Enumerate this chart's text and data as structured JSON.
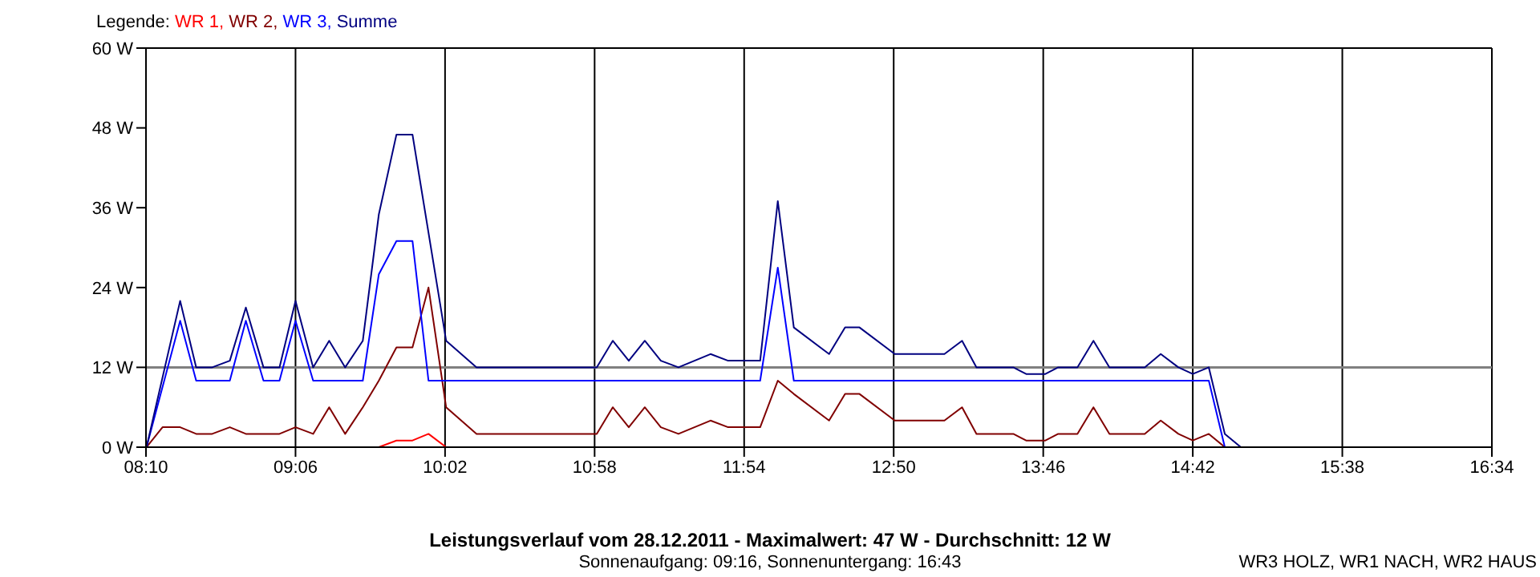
{
  "chart_data": {
    "type": "line",
    "title": "Leistungsverlauf vom 28.12.2011 - Maximalwert: 47 W - Durchschnitt: 12 W",
    "subtitle": "Sonnenaufgang: 09:16, Sonnenuntergang: 16:43",
    "annotations": [
      "WR3 HOLZ, WR1 NACH, WR2 HAUS"
    ],
    "legend_title": "Legende:",
    "legend": "top left",
    "grid": true,
    "xlim": [
      8.1667,
      16.5667
    ],
    "xticks": [
      {
        "value": 8.1667,
        "label": "08:10"
      },
      {
        "value": 9.1,
        "label": "09:06"
      },
      {
        "value": 10.0333,
        "label": "10:02"
      },
      {
        "value": 10.9667,
        "label": "10:58"
      },
      {
        "value": 11.9,
        "label": "11:54"
      },
      {
        "value": 12.8333,
        "label": "12:50"
      },
      {
        "value": 13.7667,
        "label": "13:46"
      },
      {
        "value": 14.7,
        "label": "14:42"
      },
      {
        "value": 15.6333,
        "label": "15:38"
      },
      {
        "value": 16.5667,
        "label": "16:34"
      }
    ],
    "ylim": [
      0,
      60
    ],
    "yticks": [
      {
        "value": 0,
        "label": "0 W"
      },
      {
        "value": 12,
        "label": "12 W"
      },
      {
        "value": 24,
        "label": "24 W"
      },
      {
        "value": 36,
        "label": "36 W"
      },
      {
        "value": 48,
        "label": "48 W"
      },
      {
        "value": 60,
        "label": "60 W"
      }
    ],
    "ref_lines": [
      {
        "axis": "y",
        "value": 12,
        "color": "#808080"
      }
    ],
    "series": [
      {
        "name": "WR 1,",
        "color": "#ff0000",
        "x": [
          9.62,
          9.73,
          9.83,
          9.93,
          10.04
        ],
        "values": [
          0,
          1,
          1,
          2,
          0
        ]
      },
      {
        "name": "WR 2,",
        "color": "#800000",
        "x": [
          8.17,
          8.27,
          8.38,
          8.48,
          8.58,
          8.69,
          8.79,
          9.0,
          9.1,
          9.21,
          9.31,
          9.41,
          9.52,
          9.62,
          9.73,
          9.83,
          9.93,
          10.04,
          10.23,
          10.98,
          11.08,
          11.18,
          11.28,
          11.38,
          11.49,
          11.69,
          11.8,
          12.0,
          12.11,
          12.21,
          12.43,
          12.53,
          12.62,
          12.84,
          13.15,
          13.26,
          13.35,
          13.58,
          13.66,
          13.78,
          13.86,
          13.98,
          14.08,
          14.18,
          14.4,
          14.5,
          14.61,
          14.7,
          14.8,
          14.9
        ],
        "values": [
          0,
          3,
          3,
          2,
          2,
          3,
          2,
          2,
          3,
          2,
          6,
          2,
          6,
          10,
          15,
          15,
          24,
          6,
          2,
          2,
          6,
          3,
          6,
          3,
          2,
          4,
          3,
          3,
          10,
          8,
          4,
          8,
          8,
          4,
          4,
          6,
          2,
          2,
          1,
          1,
          2,
          2,
          6,
          2,
          2,
          4,
          2,
          1,
          2,
          0
        ]
      },
      {
        "name": "WR 3,",
        "color": "#0000ff",
        "x": [
          8.17,
          8.38,
          8.48,
          8.69,
          8.79,
          8.9,
          9.0,
          9.1,
          9.21,
          9.52,
          9.62,
          9.73,
          9.83,
          9.93,
          12.0,
          12.11,
          12.21,
          14.8,
          14.9
        ],
        "values": [
          0,
          19,
          10,
          10,
          19,
          10,
          10,
          19,
          10,
          10,
          26,
          31,
          31,
          10,
          10,
          27,
          10,
          10,
          0
        ]
      },
      {
        "name": "Summe",
        "color": "#000080",
        "x": [
          8.17,
          8.38,
          8.48,
          8.58,
          8.69,
          8.79,
          8.9,
          9.0,
          9.1,
          9.21,
          9.31,
          9.41,
          9.52,
          9.62,
          9.73,
          9.83,
          10.04,
          10.23,
          10.98,
          11.08,
          11.18,
          11.28,
          11.38,
          11.49,
          11.59,
          11.69,
          11.8,
          12.0,
          12.11,
          12.21,
          12.43,
          12.53,
          12.62,
          12.84,
          13.15,
          13.26,
          13.35,
          13.58,
          13.66,
          13.78,
          13.86,
          13.98,
          14.08,
          14.18,
          14.4,
          14.5,
          14.61,
          14.7,
          14.8,
          14.9,
          15.0
        ],
        "values": [
          0,
          22,
          12,
          12,
          13,
          21,
          12,
          12,
          22,
          12,
          16,
          12,
          16,
          35,
          47,
          47,
          16,
          12,
          12,
          16,
          13,
          16,
          13,
          12,
          13,
          14,
          13,
          13,
          37,
          18,
          14,
          18,
          18,
          14,
          14,
          16,
          12,
          12,
          11,
          11,
          12,
          12,
          16,
          12,
          12,
          14,
          12,
          11,
          12,
          2,
          0
        ]
      }
    ]
  }
}
